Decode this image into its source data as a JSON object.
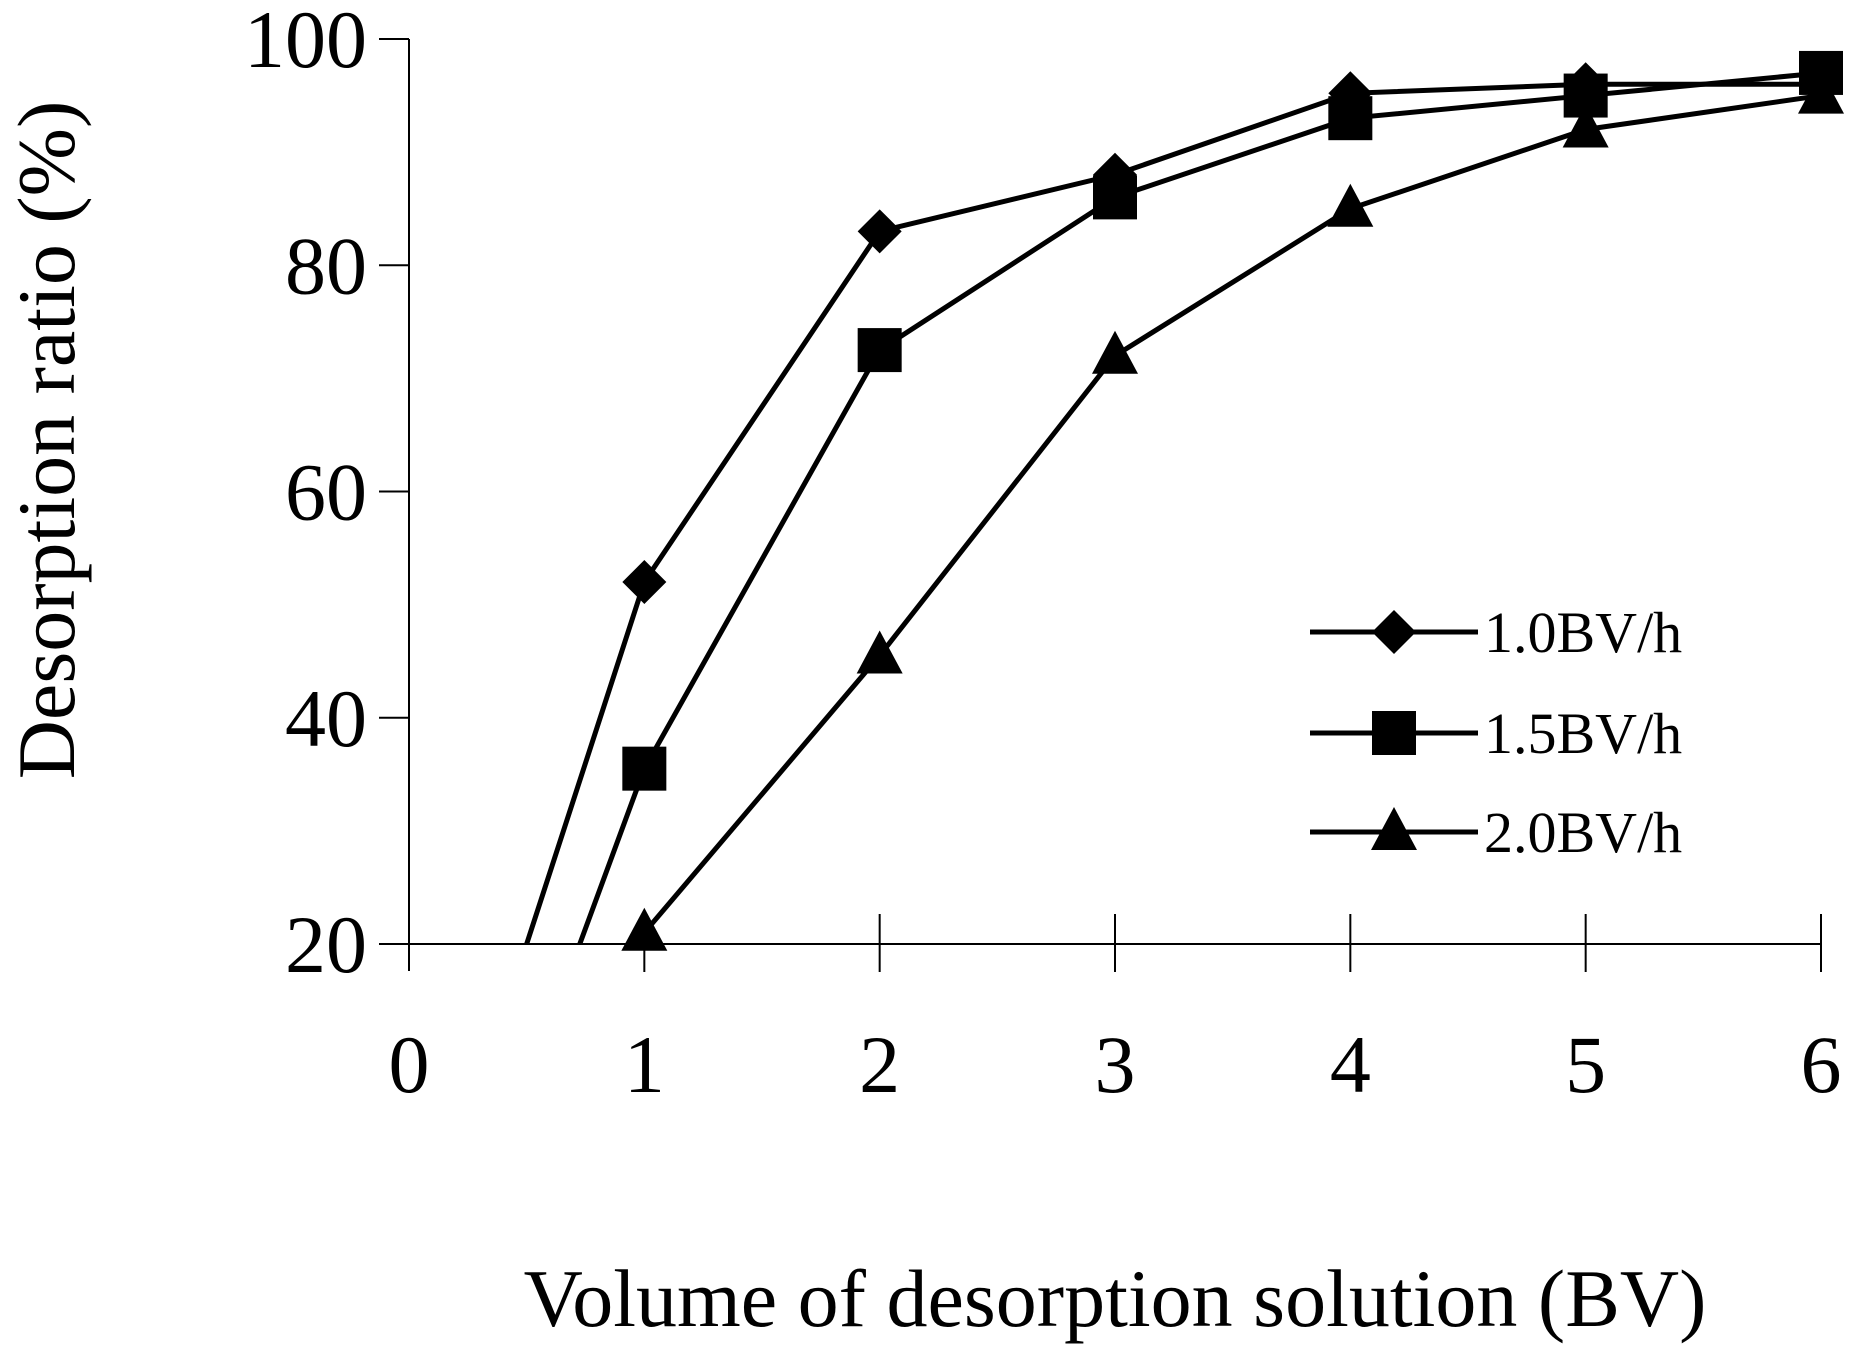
{
  "chart_data": {
    "type": "line",
    "title": "",
    "xlabel": "Volume of desorption solution (BV)",
    "ylabel": "Desorption ratio (%)",
    "x_ticks": [
      "0",
      "1",
      "2",
      "3",
      "4",
      "5",
      "6"
    ],
    "y_ticks": [
      "20",
      "40",
      "60",
      "80",
      "100"
    ],
    "xlim": [
      0,
      6
    ],
    "ylim": [
      20,
      100
    ],
    "grid": false,
    "legend": "right",
    "colors": {
      "line": "#000000",
      "marker": "#000000",
      "axis": "#000000",
      "background": "#ffffff"
    },
    "series": [
      {
        "name": "1.0BV/h",
        "marker": "diamond",
        "x": [
          0,
          1,
          2,
          3,
          4,
          5,
          6
        ],
        "y": [
          -12,
          52,
          83,
          88,
          95.2,
          96,
          96
        ]
      },
      {
        "name": "1.5BV/h",
        "marker": "square",
        "x": [
          0,
          1,
          2,
          3,
          4,
          5,
          6
        ],
        "y": [
          -21,
          35.5,
          72.5,
          86,
          93,
          95,
          97
        ]
      },
      {
        "name": "2.0BV/h",
        "marker": "triangle",
        "x": [
          0,
          1,
          2,
          3,
          4,
          5,
          6
        ],
        "y": [
          -10,
          21,
          45.5,
          72,
          85,
          92,
          95
        ]
      }
    ]
  }
}
